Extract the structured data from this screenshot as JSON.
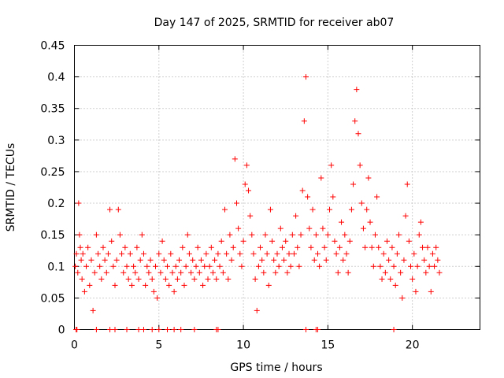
{
  "chart_data": {
    "type": "scatter",
    "title": "Day 147 of 2025, SRMTID for receiver ab07",
    "xlabel": "GPS time / hours",
    "ylabel": "SRMTID / TECUs",
    "xlim": [
      0,
      24
    ],
    "ylim": [
      0,
      0.45
    ],
    "xticks": [
      0,
      5,
      10,
      15,
      20
    ],
    "xtick_labels": [
      "0",
      "5",
      "10",
      "15",
      "20"
    ],
    "yticks": [
      0,
      0.05,
      0.1,
      0.15,
      0.2,
      0.25,
      0.3,
      0.35,
      0.4,
      0.45
    ],
    "ytick_labels": [
      "0",
      "0.05",
      "0.1",
      "0.15",
      "0.2",
      "0.25",
      "0.3",
      "0.35",
      "0.4",
      "0.45"
    ],
    "grid": true,
    "marker": "plus",
    "color": "#ff0000",
    "series": [
      {
        "name": "SRMTID",
        "points": [
          [
            0.05,
            0.1
          ],
          [
            0.12,
            0.12
          ],
          [
            0.2,
            0.09
          ],
          [
            0.25,
            0.2
          ],
          [
            0.3,
            0.15
          ],
          [
            0.35,
            0.13
          ],
          [
            0.4,
            0.11
          ],
          [
            0.45,
            0.08
          ],
          [
            0.5,
            0.12
          ],
          [
            0.6,
            0.06
          ],
          [
            0.7,
            0.1
          ],
          [
            0.8,
            0.13
          ],
          [
            0.9,
            0.07
          ],
          [
            1.0,
            0.11
          ],
          [
            1.1,
            0.03
          ],
          [
            1.2,
            0.09
          ],
          [
            1.3,
            0.15
          ],
          [
            1.4,
            0.12
          ],
          [
            1.5,
            0.1
          ],
          [
            1.6,
            0.08
          ],
          [
            1.7,
            0.13
          ],
          [
            1.8,
            0.11
          ],
          [
            1.9,
            0.09
          ],
          [
            2.0,
            0.12
          ],
          [
            2.1,
            0.19
          ],
          [
            2.2,
            0.14
          ],
          [
            2.3,
            0.1
          ],
          [
            2.4,
            0.07
          ],
          [
            2.5,
            0.11
          ],
          [
            2.6,
            0.19
          ],
          [
            2.7,
            0.15
          ],
          [
            2.8,
            0.12
          ],
          [
            2.9,
            0.09
          ],
          [
            3.0,
            0.13
          ],
          [
            3.1,
            0.1
          ],
          [
            3.2,
            0.08
          ],
          [
            3.3,
            0.12
          ],
          [
            3.4,
            0.07
          ],
          [
            3.5,
            0.1
          ],
          [
            3.6,
            0.09
          ],
          [
            3.7,
            0.13
          ],
          [
            3.8,
            0.08
          ],
          [
            3.9,
            0.11
          ],
          [
            4.0,
            0.15
          ],
          [
            4.1,
            0.12
          ],
          [
            4.2,
            0.07
          ],
          [
            4.3,
            0.1
          ],
          [
            4.4,
            0.09
          ],
          [
            4.5,
            0.11
          ],
          [
            4.6,
            0.08
          ],
          [
            4.7,
            0.06
          ],
          [
            4.8,
            0.1
          ],
          [
            4.9,
            0.05
          ],
          [
            5.0,
            0.12
          ],
          [
            5.1,
            0.09
          ],
          [
            5.2,
            0.14
          ],
          [
            5.3,
            0.11
          ],
          [
            5.4,
            0.08
          ],
          [
            5.5,
            0.1
          ],
          [
            5.6,
            0.07
          ],
          [
            5.7,
            0.12
          ],
          [
            5.8,
            0.09
          ],
          [
            5.9,
            0.06
          ],
          [
            6.0,
            0.1
          ],
          [
            6.1,
            0.08
          ],
          [
            6.2,
            0.11
          ],
          [
            6.3,
            0.09
          ],
          [
            6.4,
            0.13
          ],
          [
            6.5,
            0.07
          ],
          [
            6.6,
            0.1
          ],
          [
            6.7,
            0.15
          ],
          [
            6.8,
            0.12
          ],
          [
            6.9,
            0.09
          ],
          [
            7.0,
            0.11
          ],
          [
            7.1,
            0.08
          ],
          [
            7.2,
            0.1
          ],
          [
            7.3,
            0.13
          ],
          [
            7.4,
            0.09
          ],
          [
            7.5,
            0.11
          ],
          [
            7.6,
            0.07
          ],
          [
            7.7,
            0.1
          ],
          [
            7.8,
            0.12
          ],
          [
            7.9,
            0.08
          ],
          [
            8.0,
            0.1
          ],
          [
            8.1,
            0.13
          ],
          [
            8.2,
            0.09
          ],
          [
            8.3,
            0.11
          ],
          [
            8.4,
            0.08
          ],
          [
            8.5,
            0.12
          ],
          [
            8.6,
            0.1
          ],
          [
            8.7,
            0.14
          ],
          [
            8.8,
            0.09
          ],
          [
            8.9,
            0.19
          ],
          [
            9.0,
            0.12
          ],
          [
            9.1,
            0.08
          ],
          [
            9.2,
            0.15
          ],
          [
            9.3,
            0.11
          ],
          [
            9.4,
            0.13
          ],
          [
            9.5,
            0.27
          ],
          [
            9.6,
            0.2
          ],
          [
            9.7,
            0.16
          ],
          [
            9.8,
            0.12
          ],
          [
            9.9,
            0.1
          ],
          [
            10.0,
            0.14
          ],
          [
            10.1,
            0.23
          ],
          [
            10.2,
            0.26
          ],
          [
            10.3,
            0.22
          ],
          [
            10.4,
            0.18
          ],
          [
            10.5,
            0.15
          ],
          [
            10.6,
            0.12
          ],
          [
            10.7,
            0.08
          ],
          [
            10.8,
            0.03
          ],
          [
            10.9,
            0.1
          ],
          [
            11.0,
            0.13
          ],
          [
            11.1,
            0.11
          ],
          [
            11.2,
            0.09
          ],
          [
            11.3,
            0.15
          ],
          [
            11.4,
            0.12
          ],
          [
            11.5,
            0.07
          ],
          [
            11.6,
            0.19
          ],
          [
            11.7,
            0.14
          ],
          [
            11.8,
            0.11
          ],
          [
            11.9,
            0.09
          ],
          [
            12.0,
            0.12
          ],
          [
            12.1,
            0.1
          ],
          [
            12.2,
            0.16
          ],
          [
            12.3,
            0.13
          ],
          [
            12.4,
            0.11
          ],
          [
            12.5,
            0.14
          ],
          [
            12.6,
            0.09
          ],
          [
            12.7,
            0.12
          ],
          [
            12.8,
            0.1
          ],
          [
            12.9,
            0.15
          ],
          [
            13.0,
            0.12
          ],
          [
            13.1,
            0.18
          ],
          [
            13.2,
            0.13
          ],
          [
            13.3,
            0.1
          ],
          [
            13.4,
            0.15
          ],
          [
            13.5,
            0.22
          ],
          [
            13.6,
            0.33
          ],
          [
            13.7,
            0.4
          ],
          [
            13.8,
            0.21
          ],
          [
            13.9,
            0.16
          ],
          [
            14.0,
            0.13
          ],
          [
            14.1,
            0.19
          ],
          [
            14.2,
            0.11
          ],
          [
            14.3,
            0.15
          ],
          [
            14.4,
            0.12
          ],
          [
            14.5,
            0.1
          ],
          [
            14.6,
            0.24
          ],
          [
            14.7,
            0.16
          ],
          [
            14.8,
            0.13
          ],
          [
            14.9,
            0.11
          ],
          [
            15.0,
            0.15
          ],
          [
            15.1,
            0.19
          ],
          [
            15.2,
            0.26
          ],
          [
            15.3,
            0.21
          ],
          [
            15.4,
            0.14
          ],
          [
            15.5,
            0.12
          ],
          [
            15.6,
            0.09
          ],
          [
            15.7,
            0.13
          ],
          [
            15.8,
            0.17
          ],
          [
            15.9,
            0.11
          ],
          [
            16.0,
            0.15
          ],
          [
            16.1,
            0.12
          ],
          [
            16.2,
            0.09
          ],
          [
            16.3,
            0.14
          ],
          [
            16.4,
            0.19
          ],
          [
            16.5,
            0.23
          ],
          [
            16.6,
            0.33
          ],
          [
            16.7,
            0.38
          ],
          [
            16.8,
            0.31
          ],
          [
            16.9,
            0.26
          ],
          [
            17.0,
            0.2
          ],
          [
            17.1,
            0.16
          ],
          [
            17.2,
            0.13
          ],
          [
            17.3,
            0.19
          ],
          [
            17.4,
            0.24
          ],
          [
            17.5,
            0.17
          ],
          [
            17.6,
            0.13
          ],
          [
            17.7,
            0.1
          ],
          [
            17.8,
            0.15
          ],
          [
            17.9,
            0.21
          ],
          [
            18.0,
            0.13
          ],
          [
            18.1,
            0.1
          ],
          [
            18.2,
            0.08
          ],
          [
            18.3,
            0.12
          ],
          [
            18.4,
            0.09
          ],
          [
            18.5,
            0.14
          ],
          [
            18.6,
            0.11
          ],
          [
            18.7,
            0.08
          ],
          [
            18.8,
            0.13
          ],
          [
            18.9,
            0.1
          ],
          [
            19.0,
            0.07
          ],
          [
            19.1,
            0.12
          ],
          [
            19.2,
            0.15
          ],
          [
            19.3,
            0.09
          ],
          [
            19.4,
            0.05
          ],
          [
            19.5,
            0.11
          ],
          [
            19.6,
            0.18
          ],
          [
            19.7,
            0.23
          ],
          [
            19.8,
            0.14
          ],
          [
            19.9,
            0.1
          ],
          [
            20.0,
            0.08
          ],
          [
            20.1,
            0.12
          ],
          [
            20.2,
            0.06
          ],
          [
            20.3,
            0.1
          ],
          [
            20.4,
            0.15
          ],
          [
            20.5,
            0.17
          ],
          [
            20.6,
            0.13
          ],
          [
            20.7,
            0.11
          ],
          [
            20.8,
            0.09
          ],
          [
            20.9,
            0.13
          ],
          [
            21.0,
            0.1
          ],
          [
            21.1,
            0.06
          ],
          [
            21.2,
            0.12
          ],
          [
            21.3,
            0.1
          ],
          [
            21.4,
            0.13
          ],
          [
            21.5,
            0.11
          ],
          [
            21.6,
            0.09
          ],
          [
            0.1,
            0.0
          ],
          [
            0.15,
            0.0
          ],
          [
            1.3,
            0.0
          ],
          [
            2.1,
            0.0
          ],
          [
            2.4,
            0.0
          ],
          [
            3.1,
            0.0
          ],
          [
            3.8,
            0.0
          ],
          [
            4.1,
            0.0
          ],
          [
            4.6,
            0.0
          ],
          [
            5.0,
            0.0
          ],
          [
            5.5,
            0.0
          ],
          [
            5.9,
            0.0
          ],
          [
            6.3,
            0.0
          ],
          [
            7.1,
            0.0
          ],
          [
            8.4,
            0.0
          ],
          [
            8.5,
            0.0
          ],
          [
            13.7,
            0.0
          ],
          [
            14.3,
            0.0
          ],
          [
            14.4,
            0.0
          ],
          [
            18.9,
            0.0
          ]
        ]
      }
    ]
  }
}
